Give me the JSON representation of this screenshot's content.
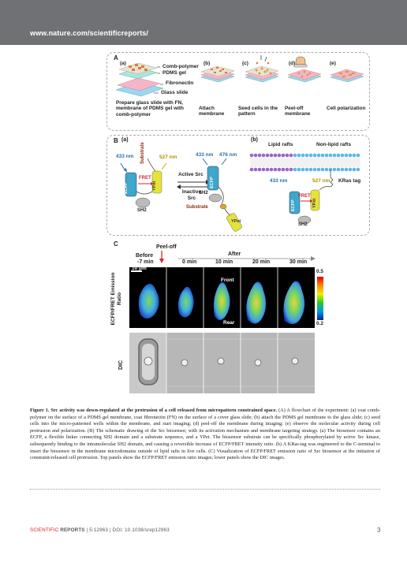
{
  "header": {
    "url": "www.nature.com/scientificreports/"
  },
  "panel_a": {
    "label": "A",
    "steps": [
      {
        "tag": "(a)",
        "caption": "Prepare glass slide with FN, membrane of PDMS gel with comb-polymer"
      },
      {
        "tag": "(b)",
        "caption": "Attach membrane"
      },
      {
        "tag": "(c)",
        "caption": "Seed cells in the pattern"
      },
      {
        "tag": "(d)",
        "caption": "Peel-off membrane"
      },
      {
        "tag": "(e)",
        "caption": "Cell polarization"
      }
    ],
    "layers": [
      "Comb-polymer",
      "PDMS gel",
      "Fibronectin",
      "Glass slide"
    ]
  },
  "panel_b": {
    "label": "B",
    "a": {
      "tag": "(a)",
      "wl_433": "433 nm",
      "wl_527": "527 nm",
      "wl_476": "476 nm",
      "substrate": "Substrate",
      "ecfp": "ECFP",
      "ypet": "YPet",
      "sh2": "SH2",
      "fret": "FRET",
      "active": "Active Src",
      "inactive": "Inactive Src"
    },
    "b": {
      "tag": "(b)",
      "lipid": "Lipid rafts",
      "nonlipid": "Non-lipid rafts",
      "kras": "KRas tag"
    }
  },
  "panel_c": {
    "label": "C",
    "peel_off": "Peel-off",
    "before": "Before",
    "after": "After",
    "times": [
      "-7 min",
      "0 min",
      "10 min",
      "20 min",
      "30 min"
    ],
    "scale_bar": "10 μm",
    "front": "Front",
    "rear": "Rear",
    "row1_label": "ECFP/FRET Emission Ratio",
    "row2_label": "DIC",
    "cbar_max": "0.5",
    "cbar_min": "0.2"
  },
  "caption": {
    "title": "Figure 1. Src activity was down-regulated at the protrusion of a cell released from micropattern constrained space.",
    "body": " (A) A flowchart of the experiment: (a) coat comb-polymer on the surface of a PDMS gel membrane, coat fibronectin (FN) on the surface of a cover glass slide; (b) attach the PDMS gel membrane to the glass slide; (c) seed cells into the micro-patterned wells within the membrane, and start imaging; (d) peel-off the membrane during imaging; (e) observe the molecular activity during cell protrusion and polarization. (B) The schematic drawing of the Src biosensor, with its activation mechanism and membrane targeting strategy. (a) The biosensor contains an ECFP, a flexible linker connecting SH2 domain and a substrate sequence, and a YPet. The biosensor substrate can be specifically phosphorylated by active Src kinase, subsequently binding to the intramolecular SH2 domain, and causing a reversible increase of ECFP/FRET intensity ratio. (b) A KRas-tag was engineered to the C-terminal to insert the biosensor in the membrane microdomains outside of lipid rafts in live cells. (C) Visualization of ECFP/FRET emission ratio of Src biosensor at the initiation of constraint-released cell protrusion. Top panels show the ECFP/FRET emission ratio images; lower panels show the DIC images."
  },
  "footer": {
    "journal": "SCIENTIFIC",
    "journal_bold": "REPORTS",
    "ref": " | 5:12963 | DOI: 10.1038/srep12963",
    "page": "3"
  },
  "colors": {
    "header_band": "#6f7175",
    "ecfp": "#3fa7c9",
    "ypet": "#e5e23a",
    "fret": "#d6282b",
    "lipid_purple": "#9b66c4",
    "nonlipid_blue": "#5fb7e6"
  }
}
